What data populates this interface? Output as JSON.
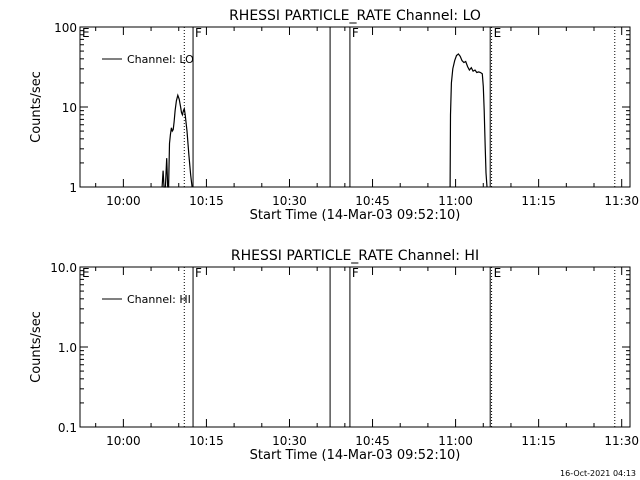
{
  "timestamp": "16-Oct-2021 04:13",
  "chart_data": [
    {
      "type": "line",
      "title": "RHESSI PARTICLE_RATE Channel: LO",
      "xlabel": "Start Time (14-Mar-03 09:52:10)",
      "ylabel": "Counts/sec",
      "y_scale": "log",
      "ylim": [
        1,
        100
      ],
      "xlim": [
        "09:52:10",
        "11:31:30"
      ],
      "x_ticks": [
        "10:00",
        "10:15",
        "10:30",
        "10:45",
        "11:00",
        "11:15",
        "11:30"
      ],
      "y_ticks": [
        "1",
        "10",
        "100"
      ],
      "legend": {
        "placement": "top-left",
        "entries": [
          "Channel: LO"
        ]
      },
      "markers": [
        {
          "time": "09:52:10",
          "label": "E",
          "style": "dotted"
        },
        {
          "time": "10:11:00",
          "label": "",
          "style": "dotted"
        },
        {
          "time": "10:12:35",
          "label": "F",
          "style": "solid"
        },
        {
          "time": "10:37:20",
          "label": "",
          "style": "solid"
        },
        {
          "time": "10:40:55",
          "label": "F",
          "style": "solid"
        },
        {
          "time": "11:06:15",
          "label": "",
          "style": "solid"
        },
        {
          "time": "11:06:30",
          "label": "E",
          "style": "dotted"
        },
        {
          "time": "11:28:45",
          "label": "",
          "style": "dotted"
        }
      ],
      "series": [
        {
          "name": "Channel: LO",
          "segments": [
            [
              [
                "10:07:00",
                1
              ],
              [
                "10:07:10",
                1.6
              ],
              [
                "10:07:20",
                1
              ],
              [
                "10:07:35",
                1
              ],
              [
                "10:07:50",
                2.3
              ],
              [
                "10:08:00",
                1
              ],
              [
                "10:08:10",
                1
              ],
              [
                "10:08:20",
                3.5
              ],
              [
                "10:08:30",
                4.5
              ],
              [
                "10:08:40",
                5.5
              ],
              [
                "10:08:50",
                5
              ],
              [
                "10:09:00",
                5.2
              ],
              [
                "10:09:10",
                6.5
              ],
              [
                "10:09:20",
                9
              ],
              [
                "10:09:35",
                12
              ],
              [
                "10:09:50",
                14
              ],
              [
                "10:10:05",
                12.5
              ],
              [
                "10:10:20",
                10
              ],
              [
                "10:10:30",
                8.5
              ],
              [
                "10:10:40",
                8
              ],
              [
                "10:10:50",
                9
              ],
              [
                "10:11:00",
                9.5
              ],
              [
                "10:11:10",
                8
              ],
              [
                "10:11:30",
                5
              ],
              [
                "10:11:50",
                2.5
              ],
              [
                "10:12:10",
                1.4
              ],
              [
                "10:12:25",
                1
              ]
            ],
            [
              [
                "10:59:00",
                1
              ],
              [
                "10:59:05",
                8
              ],
              [
                "10:59:15",
                20
              ],
              [
                "10:59:30",
                30
              ],
              [
                "10:59:50",
                38
              ],
              [
                "11:00:10",
                44
              ],
              [
                "11:00:30",
                46
              ],
              [
                "11:00:50",
                43
              ],
              [
                "11:01:10",
                38
              ],
              [
                "11:01:30",
                36
              ],
              [
                "11:01:50",
                37
              ],
              [
                "11:02:10",
                32
              ],
              [
                "11:02:30",
                29
              ],
              [
                "11:02:50",
                31
              ],
              [
                "11:03:10",
                28
              ],
              [
                "11:03:30",
                29
              ],
              [
                "11:03:50",
                27
              ],
              [
                "11:04:10",
                27.5
              ],
              [
                "11:04:30",
                27
              ],
              [
                "11:04:50",
                26
              ],
              [
                "11:05:00",
                18
              ],
              [
                "11:05:10",
                9
              ],
              [
                "11:05:20",
                3.5
              ],
              [
                "11:05:30",
                1.5
              ],
              [
                "11:05:40",
                1
              ]
            ]
          ]
        }
      ]
    },
    {
      "type": "line",
      "title": "RHESSI PARTICLE_RATE Channel: HI",
      "xlabel": "Start Time (14-Mar-03 09:52:10)",
      "ylabel": "Counts/sec",
      "y_scale": "log",
      "ylim": [
        0.1,
        10
      ],
      "xlim": [
        "09:52:10",
        "11:31:30"
      ],
      "x_ticks": [
        "10:00",
        "10:15",
        "10:30",
        "10:45",
        "11:00",
        "11:15",
        "11:30"
      ],
      "y_ticks": [
        "0.1",
        "1.0",
        "10.0"
      ],
      "legend": {
        "placement": "top-left",
        "entries": [
          "Channel: HI"
        ]
      },
      "markers": [
        {
          "time": "09:52:10",
          "label": "E",
          "style": "dotted"
        },
        {
          "time": "10:11:00",
          "label": "",
          "style": "dotted"
        },
        {
          "time": "10:12:35",
          "label": "F",
          "style": "solid"
        },
        {
          "time": "10:37:20",
          "label": "",
          "style": "solid"
        },
        {
          "time": "10:40:55",
          "label": "F",
          "style": "solid"
        },
        {
          "time": "11:06:15",
          "label": "",
          "style": "solid"
        },
        {
          "time": "11:06:30",
          "label": "E",
          "style": "dotted"
        },
        {
          "time": "11:28:45",
          "label": "",
          "style": "dotted"
        }
      ],
      "series": [
        {
          "name": "Channel: HI",
          "segments": []
        }
      ]
    }
  ]
}
